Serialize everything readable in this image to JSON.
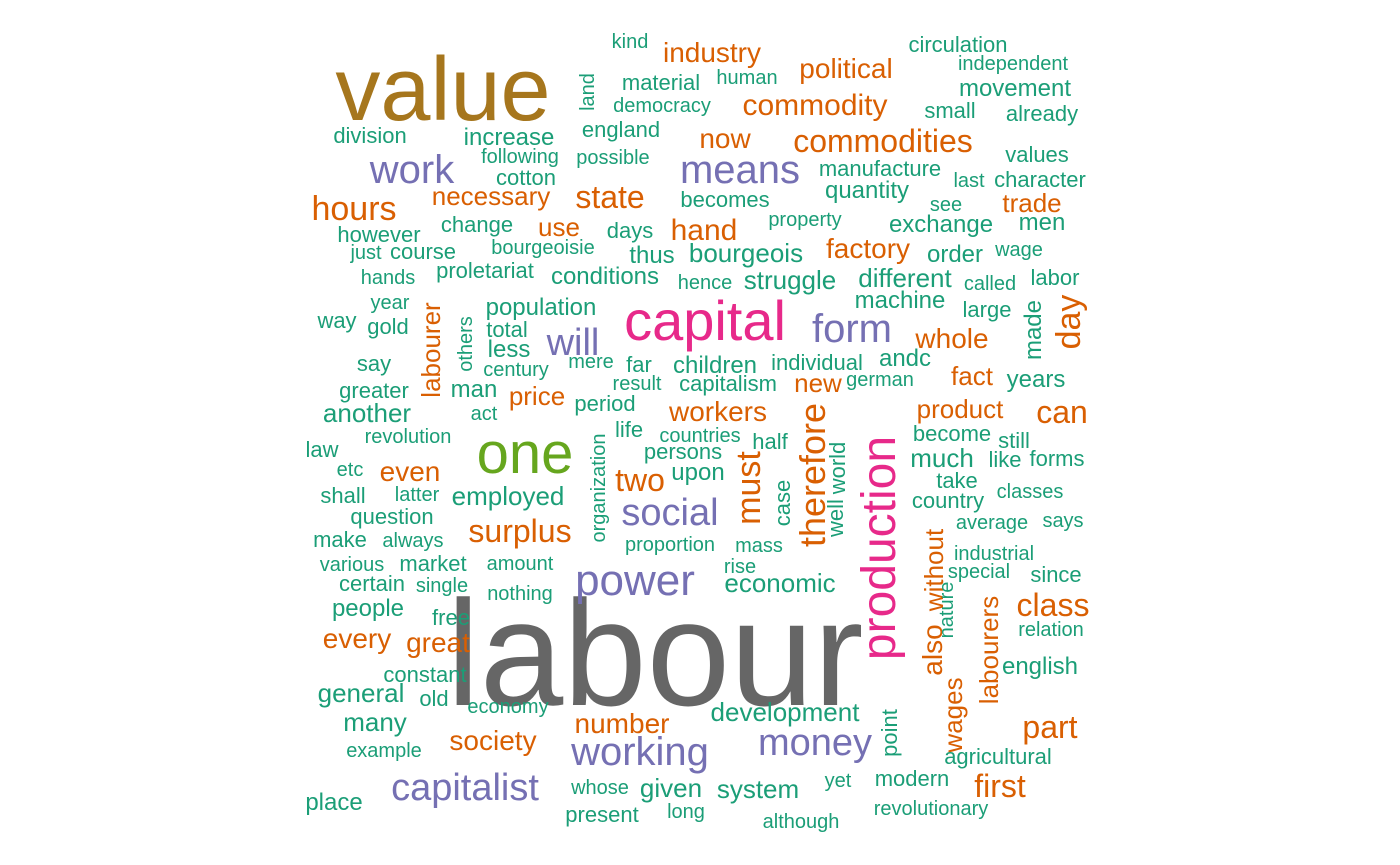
{
  "palette": {
    "green": "#1b9e77",
    "orange": "#d95f02",
    "purple": "#7570b3",
    "magenta": "#e7298a",
    "lime": "#66a61e",
    "gold": "#a6761d",
    "gray": "#666666"
  },
  "words": [
    {
      "text": "labour",
      "color": "gray"
    },
    {
      "text": "value",
      "color": "gold"
    },
    {
      "text": "capital",
      "color": "magenta"
    },
    {
      "text": "production",
      "color": "magenta"
    },
    {
      "text": "one",
      "color": "lime"
    },
    {
      "text": "power",
      "color": "purple"
    },
    {
      "text": "working",
      "color": "purple"
    },
    {
      "text": "capitalist",
      "color": "purple"
    },
    {
      "text": "means",
      "color": "purple"
    },
    {
      "text": "work",
      "color": "purple"
    },
    {
      "text": "social",
      "color": "purple"
    },
    {
      "text": "money",
      "color": "purple"
    },
    {
      "text": "form",
      "color": "purple"
    },
    {
      "text": "will",
      "color": "purple"
    },
    {
      "text": "commodities",
      "color": "orange"
    },
    {
      "text": "commodity",
      "color": "orange"
    },
    {
      "text": "industry",
      "color": "orange"
    },
    {
      "text": "political",
      "color": "orange"
    },
    {
      "text": "state",
      "color": "orange"
    },
    {
      "text": "hours",
      "color": "orange"
    },
    {
      "text": "necessary",
      "color": "orange"
    },
    {
      "text": "now",
      "color": "orange"
    },
    {
      "text": "hand",
      "color": "orange"
    },
    {
      "text": "use",
      "color": "orange"
    },
    {
      "text": "factory",
      "color": "orange"
    },
    {
      "text": "trade",
      "color": "orange"
    },
    {
      "text": "whole",
      "color": "orange"
    },
    {
      "text": "day",
      "color": "orange"
    },
    {
      "text": "labourer",
      "color": "orange"
    },
    {
      "text": "new",
      "color": "orange"
    },
    {
      "text": "fact",
      "color": "orange"
    },
    {
      "text": "price",
      "color": "orange"
    },
    {
      "text": "workers",
      "color": "orange"
    },
    {
      "text": "product",
      "color": "orange"
    },
    {
      "text": "can",
      "color": "orange"
    },
    {
      "text": "therefore",
      "color": "orange"
    },
    {
      "text": "must",
      "color": "orange"
    },
    {
      "text": "even",
      "color": "orange"
    },
    {
      "text": "two",
      "color": "orange"
    },
    {
      "text": "surplus",
      "color": "orange"
    },
    {
      "text": "also",
      "color": "orange"
    },
    {
      "text": "without",
      "color": "orange"
    },
    {
      "text": "wages",
      "color": "orange"
    },
    {
      "text": "labourers",
      "color": "orange"
    },
    {
      "text": "class",
      "color": "orange"
    },
    {
      "text": "every",
      "color": "orange"
    },
    {
      "text": "great",
      "color": "orange"
    },
    {
      "text": "number",
      "color": "orange"
    },
    {
      "text": "society",
      "color": "orange"
    },
    {
      "text": "part",
      "color": "orange"
    },
    {
      "text": "first",
      "color": "orange"
    },
    {
      "text": "kind",
      "color": "green"
    },
    {
      "text": "circulation",
      "color": "green"
    },
    {
      "text": "independent",
      "color": "green"
    },
    {
      "text": "material",
      "color": "green"
    },
    {
      "text": "human",
      "color": "green"
    },
    {
      "text": "land",
      "color": "green"
    },
    {
      "text": "democracy",
      "color": "green"
    },
    {
      "text": "movement",
      "color": "green"
    },
    {
      "text": "small",
      "color": "green"
    },
    {
      "text": "already",
      "color": "green"
    },
    {
      "text": "division",
      "color": "green"
    },
    {
      "text": "increase",
      "color": "green"
    },
    {
      "text": "england",
      "color": "green"
    },
    {
      "text": "following",
      "color": "green"
    },
    {
      "text": "possible",
      "color": "green"
    },
    {
      "text": "values",
      "color": "green"
    },
    {
      "text": "cotton",
      "color": "green"
    },
    {
      "text": "manufacture",
      "color": "green"
    },
    {
      "text": "last",
      "color": "green"
    },
    {
      "text": "character",
      "color": "green"
    },
    {
      "text": "quantity",
      "color": "green"
    },
    {
      "text": "becomes",
      "color": "green"
    },
    {
      "text": "see",
      "color": "green"
    },
    {
      "text": "change",
      "color": "green"
    },
    {
      "text": "property",
      "color": "green"
    },
    {
      "text": "exchange",
      "color": "green"
    },
    {
      "text": "men",
      "color": "green"
    },
    {
      "text": "however",
      "color": "green"
    },
    {
      "text": "days",
      "color": "green"
    },
    {
      "text": "just",
      "color": "green"
    },
    {
      "text": "course",
      "color": "green"
    },
    {
      "text": "bourgeoisie",
      "color": "green"
    },
    {
      "text": "thus",
      "color": "green"
    },
    {
      "text": "bourgeois",
      "color": "green"
    },
    {
      "text": "order",
      "color": "green"
    },
    {
      "text": "wage",
      "color": "green"
    },
    {
      "text": "hands",
      "color": "green"
    },
    {
      "text": "proletariat",
      "color": "green"
    },
    {
      "text": "conditions",
      "color": "green"
    },
    {
      "text": "hence",
      "color": "green"
    },
    {
      "text": "struggle",
      "color": "green"
    },
    {
      "text": "different",
      "color": "green"
    },
    {
      "text": "called",
      "color": "green"
    },
    {
      "text": "labor",
      "color": "green"
    },
    {
      "text": "year",
      "color": "green"
    },
    {
      "text": "machine",
      "color": "green"
    },
    {
      "text": "population",
      "color": "green"
    },
    {
      "text": "large",
      "color": "green"
    },
    {
      "text": "way",
      "color": "green"
    },
    {
      "text": "gold",
      "color": "green"
    },
    {
      "text": "others",
      "color": "green"
    },
    {
      "text": "total",
      "color": "green"
    },
    {
      "text": "made",
      "color": "green"
    },
    {
      "text": "less",
      "color": "green"
    },
    {
      "text": "say",
      "color": "green"
    },
    {
      "text": "mere",
      "color": "green"
    },
    {
      "text": "far",
      "color": "green"
    },
    {
      "text": "children",
      "color": "green"
    },
    {
      "text": "individual",
      "color": "green"
    },
    {
      "text": "andc",
      "color": "green"
    },
    {
      "text": "century",
      "color": "green"
    },
    {
      "text": "greater",
      "color": "green"
    },
    {
      "text": "man",
      "color": "green"
    },
    {
      "text": "result",
      "color": "green"
    },
    {
      "text": "capitalism",
      "color": "green"
    },
    {
      "text": "german",
      "color": "green"
    },
    {
      "text": "years",
      "color": "green"
    },
    {
      "text": "another",
      "color": "green"
    },
    {
      "text": "act",
      "color": "green"
    },
    {
      "text": "period",
      "color": "green"
    },
    {
      "text": "law",
      "color": "green"
    },
    {
      "text": "revolution",
      "color": "green"
    },
    {
      "text": "life",
      "color": "green"
    },
    {
      "text": "countries",
      "color": "green"
    },
    {
      "text": "half",
      "color": "green"
    },
    {
      "text": "become",
      "color": "green"
    },
    {
      "text": "still",
      "color": "green"
    },
    {
      "text": "persons",
      "color": "green"
    },
    {
      "text": "like",
      "color": "green"
    },
    {
      "text": "forms",
      "color": "green"
    },
    {
      "text": "etc",
      "color": "green"
    },
    {
      "text": "organization",
      "color": "green"
    },
    {
      "text": "upon",
      "color": "green"
    },
    {
      "text": "much",
      "color": "green"
    },
    {
      "text": "world",
      "color": "green"
    },
    {
      "text": "take",
      "color": "green"
    },
    {
      "text": "shall",
      "color": "green"
    },
    {
      "text": "latter",
      "color": "green"
    },
    {
      "text": "employed",
      "color": "green"
    },
    {
      "text": "case",
      "color": "green"
    },
    {
      "text": "country",
      "color": "green"
    },
    {
      "text": "classes",
      "color": "green"
    },
    {
      "text": "question",
      "color": "green"
    },
    {
      "text": "well",
      "color": "green"
    },
    {
      "text": "average",
      "color": "green"
    },
    {
      "text": "says",
      "color": "green"
    },
    {
      "text": "make",
      "color": "green"
    },
    {
      "text": "always",
      "color": "green"
    },
    {
      "text": "proportion",
      "color": "green"
    },
    {
      "text": "mass",
      "color": "green"
    },
    {
      "text": "industrial",
      "color": "green"
    },
    {
      "text": "various",
      "color": "green"
    },
    {
      "text": "market",
      "color": "green"
    },
    {
      "text": "amount",
      "color": "green"
    },
    {
      "text": "rise",
      "color": "green"
    },
    {
      "text": "special",
      "color": "green"
    },
    {
      "text": "since",
      "color": "green"
    },
    {
      "text": "certain",
      "color": "green"
    },
    {
      "text": "single",
      "color": "green"
    },
    {
      "text": "economic",
      "color": "green"
    },
    {
      "text": "nothing",
      "color": "green"
    },
    {
      "text": "nature",
      "color": "green"
    },
    {
      "text": "people",
      "color": "green"
    },
    {
      "text": "free",
      "color": "green"
    },
    {
      "text": "relation",
      "color": "green"
    },
    {
      "text": "constant",
      "color": "green"
    },
    {
      "text": "english",
      "color": "green"
    },
    {
      "text": "general",
      "color": "green"
    },
    {
      "text": "old",
      "color": "green"
    },
    {
      "text": "economy",
      "color": "green"
    },
    {
      "text": "development",
      "color": "green"
    },
    {
      "text": "point",
      "color": "green"
    },
    {
      "text": "many",
      "color": "green"
    },
    {
      "text": "example",
      "color": "green"
    },
    {
      "text": "agricultural",
      "color": "green"
    },
    {
      "text": "modern",
      "color": "green"
    },
    {
      "text": "yet",
      "color": "green"
    },
    {
      "text": "whose",
      "color": "green"
    },
    {
      "text": "given",
      "color": "green"
    },
    {
      "text": "system",
      "color": "green"
    },
    {
      "text": "place",
      "color": "green"
    },
    {
      "text": "present",
      "color": "green"
    },
    {
      "text": "long",
      "color": "green"
    },
    {
      "text": "although",
      "color": "green"
    },
    {
      "text": "revolutionary",
      "color": "green"
    }
  ]
}
